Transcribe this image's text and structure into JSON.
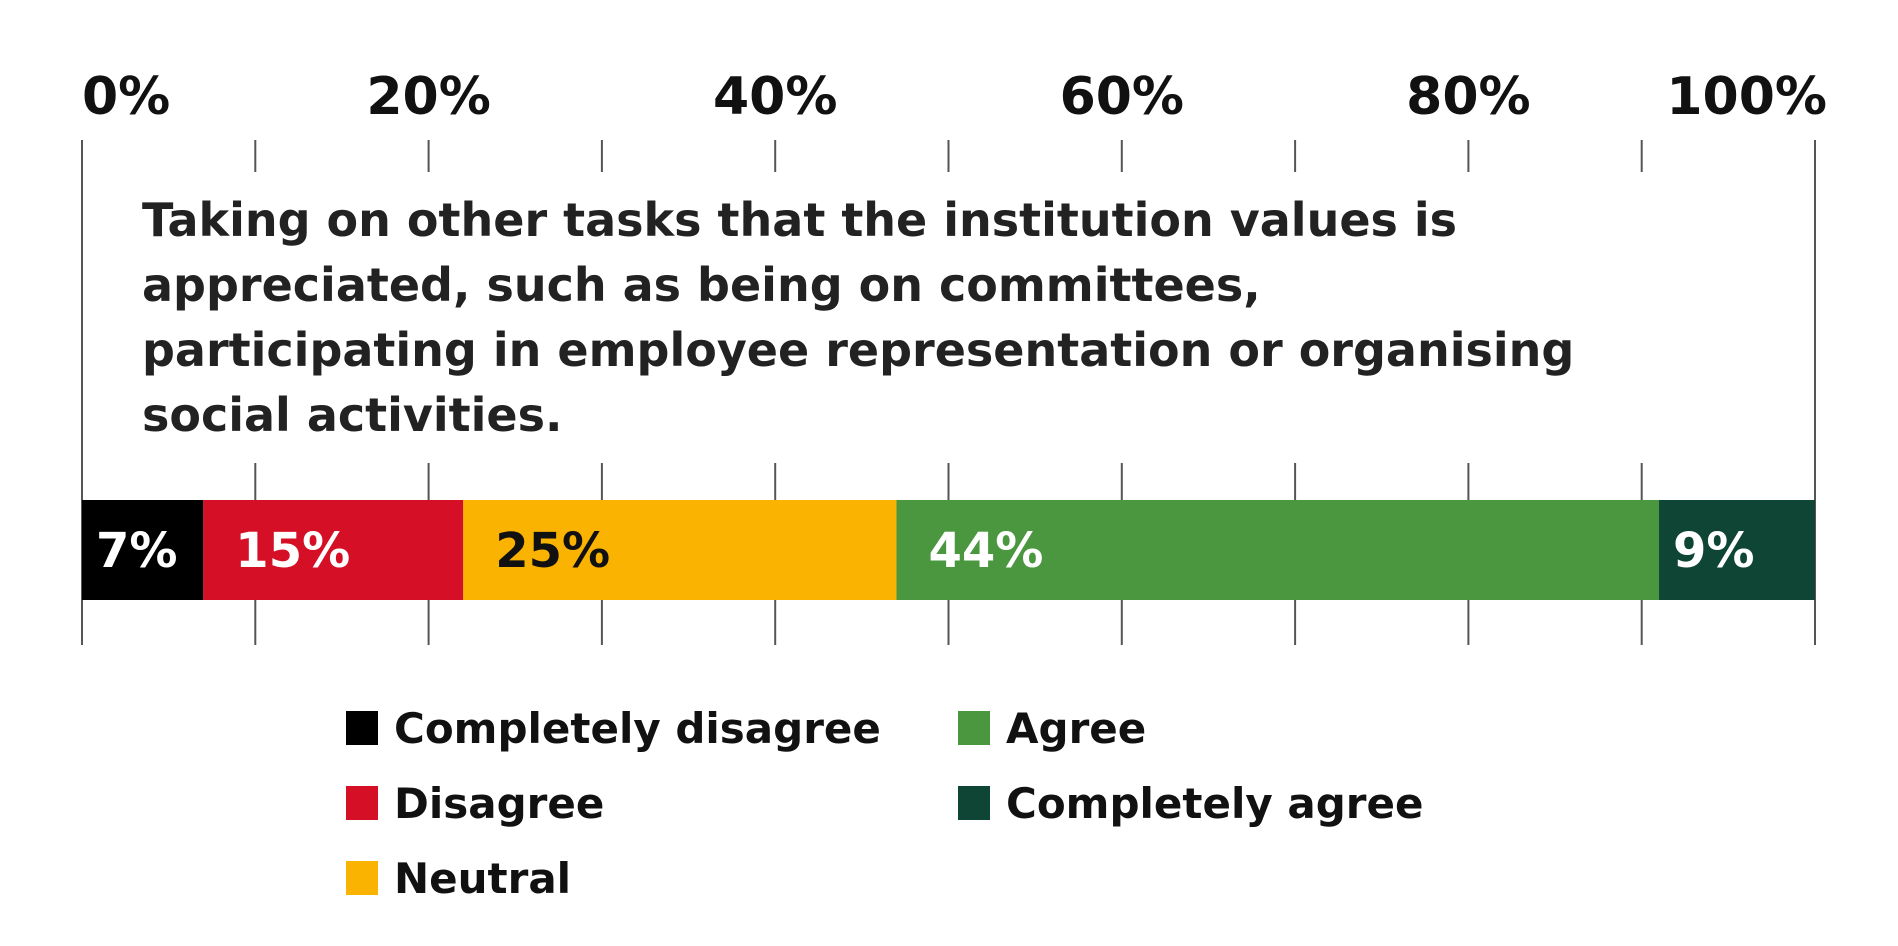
{
  "chart_data": {
    "type": "bar",
    "orientation": "horizontal",
    "stacked": true,
    "title": "Taking on other tasks that the institution values is appreciated, such as being on committees, participating in employee representation or organising social activities.",
    "title_lines": [
      "Taking on other tasks that the institution values is",
      "appreciated, such as being on committees,",
      "participating in employee representation or organising",
      "social activities."
    ],
    "xlim": [
      0,
      100
    ],
    "x_ticks": [
      0,
      20,
      40,
      60,
      80,
      100
    ],
    "x_tick_labels": [
      "0%",
      "20%",
      "40%",
      "60%",
      "80%",
      "100%"
    ],
    "grid": true,
    "legend_position": "bottom",
    "series": [
      {
        "name": "Completely disagree",
        "value": 7,
        "label": "7%",
        "color": "#000000",
        "label_color": "#ffffff"
      },
      {
        "name": "Disagree",
        "value": 15,
        "label": "15%",
        "color": "#d50f25",
        "label_color": "#ffffff"
      },
      {
        "name": "Neutral",
        "value": 25,
        "label": "25%",
        "color": "#f9b300",
        "label_color": "#111111"
      },
      {
        "name": "Agree",
        "value": 44,
        "label": "44%",
        "color": "#4a973f",
        "label_color": "#ffffff"
      },
      {
        "name": "Completely agree",
        "value": 9,
        "label": "9%",
        "color": "#0e4534",
        "label_color": "#ffffff"
      }
    ]
  }
}
